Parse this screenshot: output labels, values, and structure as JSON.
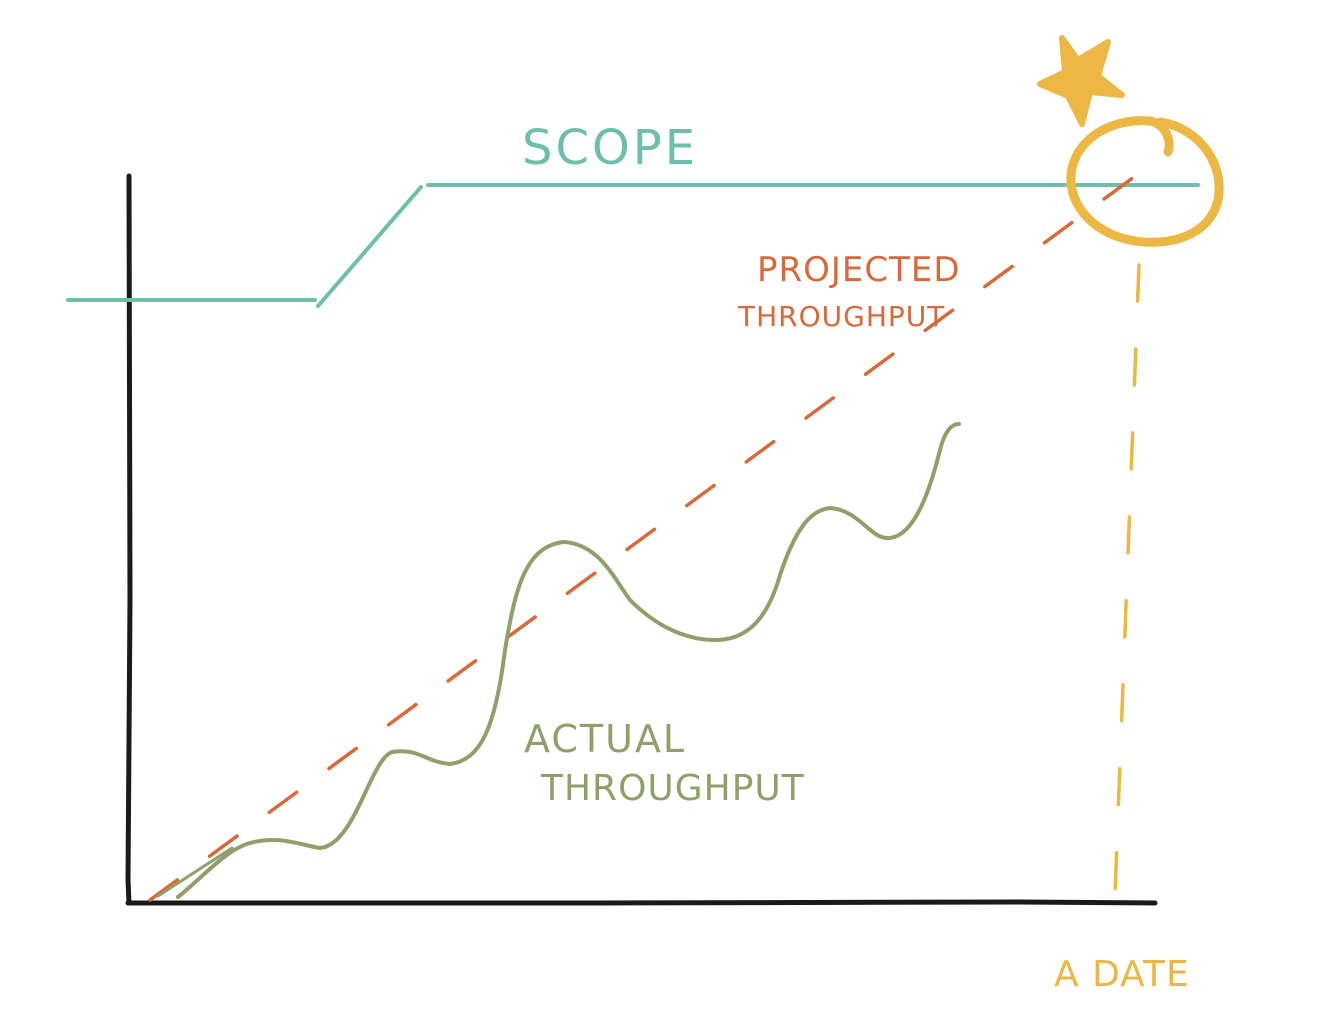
{
  "labels": {
    "scope": "SCOPE",
    "projected_line1": "PROJECTED",
    "projected_line2": "THROUGHPUT",
    "actual_line1": "ACTUAL",
    "actual_line2": "THROUGHPUT",
    "date": "A DATE"
  },
  "colors": {
    "axis": "#1a1a1a",
    "scope": "#6dbfa9",
    "projected": "#d9683a",
    "actual": "#8fa06a",
    "highlight": "#ecb743",
    "background": "#ffffff"
  },
  "icons": {
    "milestone": "star-icon",
    "intersection": "circle-highlight"
  }
}
